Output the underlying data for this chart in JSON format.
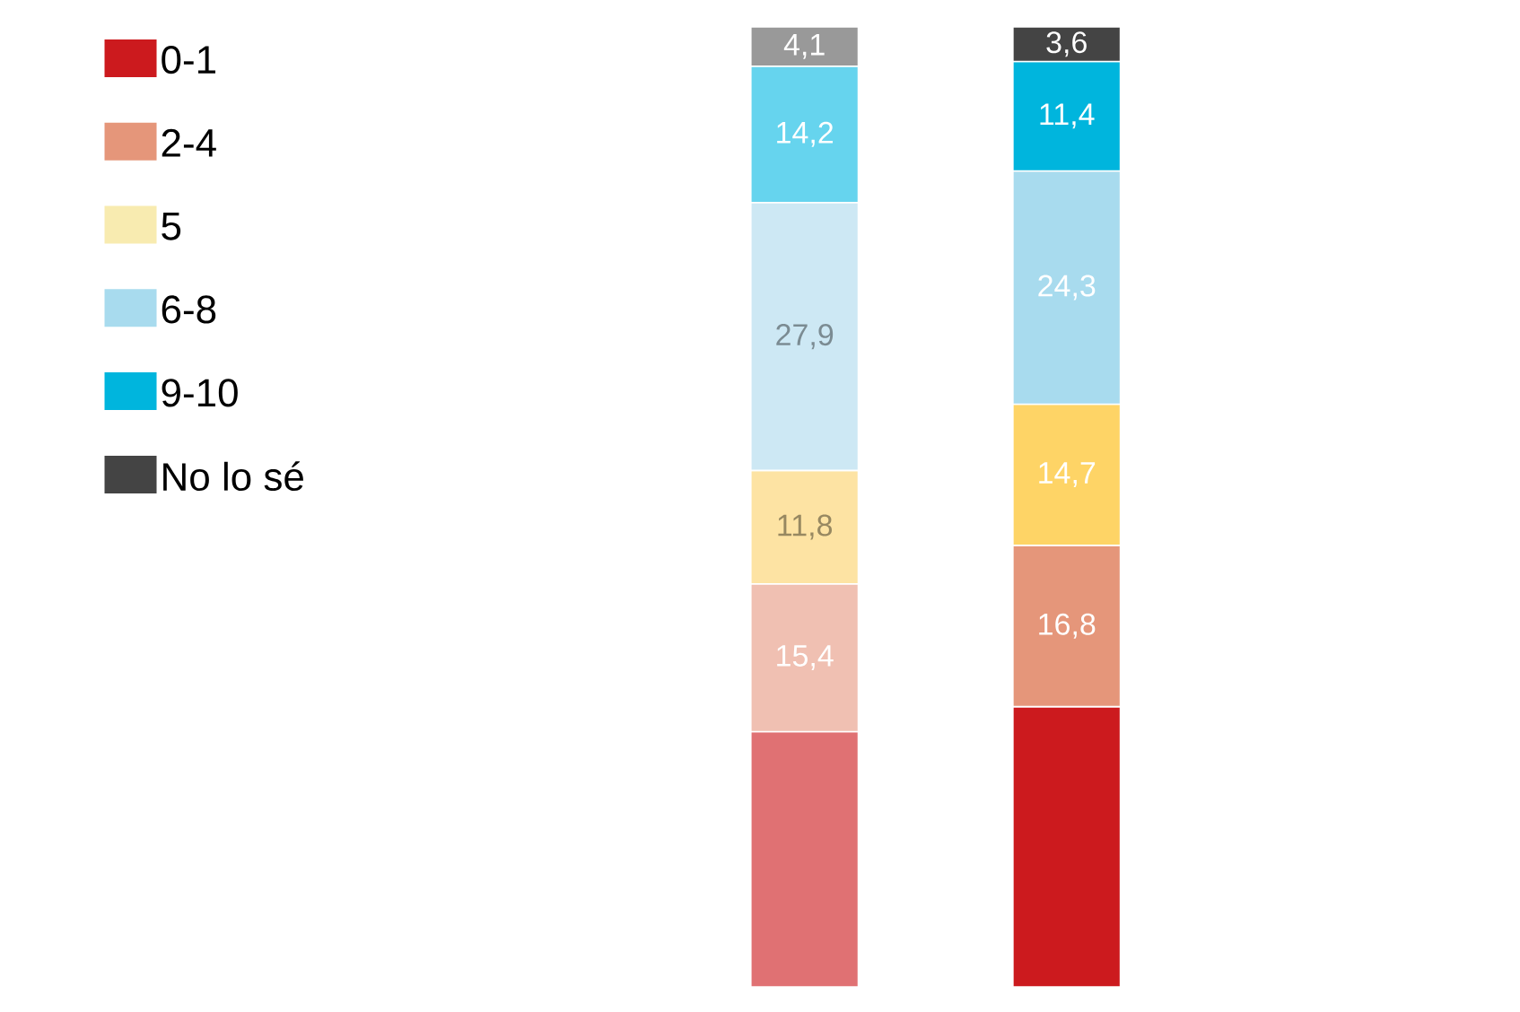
{
  "chart_data": {
    "type": "bar",
    "stacked": true,
    "categories": [
      null,
      null
    ],
    "legend": "top left",
    "series": [
      {
        "name": "0-1",
        "color": "#cc1a1e",
        "colors": [
          "#e07173",
          "#cc1a1e"
        ],
        "values": [
          26.6,
          29.2
        ],
        "value_labels": [
          null,
          null
        ]
      },
      {
        "name": "2-4",
        "color": "#e5967a",
        "colors": [
          "#f0c0b2",
          "#e5967a"
        ],
        "values": [
          15.4,
          16.8
        ],
        "value_labels": [
          "15,4",
          "16,8"
        ]
      },
      {
        "name": "5",
        "color": "#f8ebb0",
        "colors": [
          "#fde3a3",
          "#fed466"
        ],
        "values": [
          11.8,
          14.7
        ],
        "value_labels": [
          "11,8",
          "14,7"
        ]
      },
      {
        "name": "6-8",
        "color": "#a8dbee",
        "colors": [
          "#cde8f4",
          "#a8dbee"
        ],
        "values": [
          27.9,
          24.3
        ],
        "value_labels": [
          "27,9",
          "24,3"
        ]
      },
      {
        "name": "9-10",
        "color": "#00b5dd",
        "colors": [
          "#66d4ee",
          "#00b5dd"
        ],
        "values": [
          14.2,
          11.4
        ],
        "value_labels": [
          "14,2",
          "11,4"
        ]
      },
      {
        "name": "No lo sé",
        "color": "#444444",
        "colors": [
          "#999999",
          "#444444"
        ],
        "values": [
          4.1,
          3.6
        ],
        "value_labels": [
          "4,1",
          "3,6"
        ]
      }
    ]
  }
}
